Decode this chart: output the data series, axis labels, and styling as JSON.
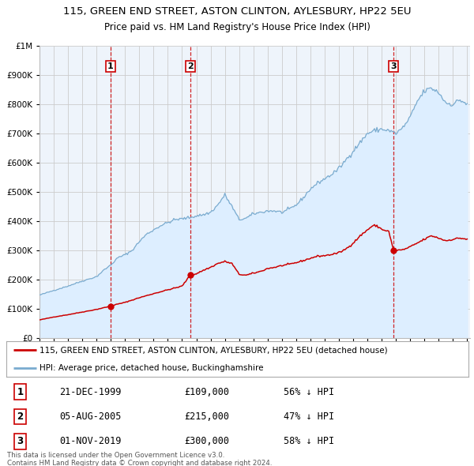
{
  "title": "115, GREEN END STREET, ASTON CLINTON, AYLESBURY, HP22 5EU",
  "subtitle": "Price paid vs. HM Land Registry's House Price Index (HPI)",
  "legend_line1": "115, GREEN END STREET, ASTON CLINTON, AYLESBURY, HP22 5EU (detached house)",
  "legend_line2": "HPI: Average price, detached house, Buckinghamshire",
  "footer1": "Contains HM Land Registry data © Crown copyright and database right 2024.",
  "footer2": "This data is licensed under the Open Government Licence v3.0.",
  "transactions": [
    {
      "num": 1,
      "date_str": "21-DEC-1999",
      "year_f": 1999.97,
      "price": 109000,
      "label": "56% ↓ HPI"
    },
    {
      "num": 2,
      "date_str": "05-AUG-2005",
      "year_f": 2005.58,
      "price": 215000,
      "label": "47% ↓ HPI"
    },
    {
      "num": 3,
      "date_str": "01-NOV-2019",
      "year_f": 2019.83,
      "price": 300000,
      "label": "58% ↓ HPI"
    }
  ],
  "sale_color": "#cc0000",
  "hpi_color": "#7aabcf",
  "hpi_fill": "#ddeeff",
  "background_color": "#ffffff",
  "plot_bg": "#eef4fb",
  "grid_color": "#cccccc",
  "ylim": [
    0,
    1000000
  ],
  "yticks": [
    0,
    100000,
    200000,
    300000,
    400000,
    500000,
    600000,
    700000,
    800000,
    900000,
    1000000
  ],
  "xstart": 1995.0,
  "xend": 2025.2,
  "hpi_anchors": {
    "1995.0": 147000,
    "1996.0": 163000,
    "1997.0": 178000,
    "1998.0": 195000,
    "1999.0": 210000,
    "1999.5": 232000,
    "2000.0": 250000,
    "2000.5": 275000,
    "2001.0": 285000,
    "2001.5": 300000,
    "2002.0": 330000,
    "2002.5": 355000,
    "2003.0": 370000,
    "2003.5": 385000,
    "2004.0": 395000,
    "2004.5": 405000,
    "2005.0": 408000,
    "2005.5": 412000,
    "2006.0": 418000,
    "2006.5": 422000,
    "2007.0": 430000,
    "2007.5": 455000,
    "2008.0": 490000,
    "2008.5": 450000,
    "2009.0": 405000,
    "2009.5": 410000,
    "2010.0": 425000,
    "2010.5": 430000,
    "2011.0": 435000,
    "2011.5": 435000,
    "2012.0": 430000,
    "2012.5": 440000,
    "2013.0": 455000,
    "2013.5": 480000,
    "2014.0": 510000,
    "2014.5": 530000,
    "2015.0": 545000,
    "2015.5": 560000,
    "2016.0": 580000,
    "2016.5": 610000,
    "2017.0": 640000,
    "2017.5": 670000,
    "2018.0": 700000,
    "2018.5": 710000,
    "2019.0": 715000,
    "2019.5": 710000,
    "2020.0": 700000,
    "2020.5": 720000,
    "2021.0": 755000,
    "2021.5": 810000,
    "2022.0": 845000,
    "2022.5": 855000,
    "2023.0": 840000,
    "2023.5": 805000,
    "2024.0": 800000,
    "2024.5": 815000,
    "2025.0": 800000
  },
  "sale_anchors": {
    "1995.0": 62000,
    "1996.0": 72000,
    "1997.0": 80000,
    "1998.0": 89000,
    "1999.0": 98000,
    "1999.97": 109000,
    "2000.3": 114000,
    "2001.0": 122000,
    "2002.0": 138000,
    "2003.0": 152000,
    "2004.0": 165000,
    "2004.8": 175000,
    "2005.0": 178000,
    "2005.58": 215000,
    "2006.0": 220000,
    "2006.5": 232000,
    "2007.0": 242000,
    "2007.5": 255000,
    "2008.0": 262000,
    "2008.5": 255000,
    "2009.0": 218000,
    "2009.5": 215000,
    "2010.0": 222000,
    "2010.5": 228000,
    "2011.0": 238000,
    "2011.5": 242000,
    "2012.0": 248000,
    "2012.5": 252000,
    "2013.0": 258000,
    "2013.5": 265000,
    "2014.0": 273000,
    "2014.5": 280000,
    "2015.0": 282000,
    "2015.5": 286000,
    "2016.0": 292000,
    "2016.5": 305000,
    "2017.0": 325000,
    "2017.5": 350000,
    "2018.0": 370000,
    "2018.3": 382000,
    "2018.5": 385000,
    "2018.8": 380000,
    "2019.0": 372000,
    "2019.5": 365000,
    "2019.83": 300000,
    "2020.0": 300000,
    "2020.5": 302000,
    "2021.0": 312000,
    "2021.5": 325000,
    "2022.0": 338000,
    "2022.5": 350000,
    "2023.0": 342000,
    "2023.5": 333000,
    "2024.0": 338000,
    "2024.5": 342000,
    "2025.0": 338000
  }
}
